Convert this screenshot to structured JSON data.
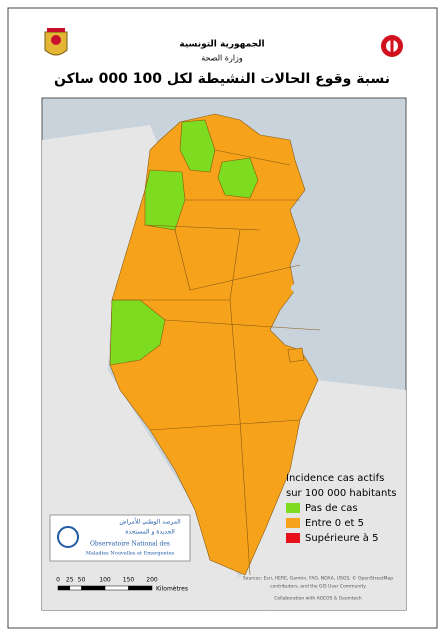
{
  "header": {
    "country": "الجمهورية التونسية",
    "ministry": "وزارة الصحة",
    "title": "نسبة وقوع الحالات النشيطة لكل 100 000 ساكن"
  },
  "legend": {
    "title_lines": [
      "Incidence cas actifs",
      "sur 100 000 habitants"
    ],
    "items": [
      {
        "label": "Pas de cas",
        "color": "#7ddc1f"
      },
      {
        "label": "Entre 0 et 5",
        "color": "#f7a21b"
      },
      {
        "label": "Supérieure à 5",
        "color": "#e8101b"
      }
    ]
  },
  "logo": {
    "arabic_lines": [
      "المرصد الوطني للأمراض",
      "الجديدة و المستجدة"
    ],
    "french_lines": [
      "Observatoire National des",
      "Maladies Nouvelles et Emergentes"
    ]
  },
  "scale_bar": {
    "ticks": [
      0,
      25,
      50,
      100,
      150,
      200
    ],
    "unit": "Kilomètres"
  },
  "credits": [
    "Sources: Esri, HERE, Garmin, FAO, NOAA, USGS, © OpenStreetMap",
    "contributors, and the GIS User Community",
    "Collaboration with AGEOS & Geointech"
  ]
}
